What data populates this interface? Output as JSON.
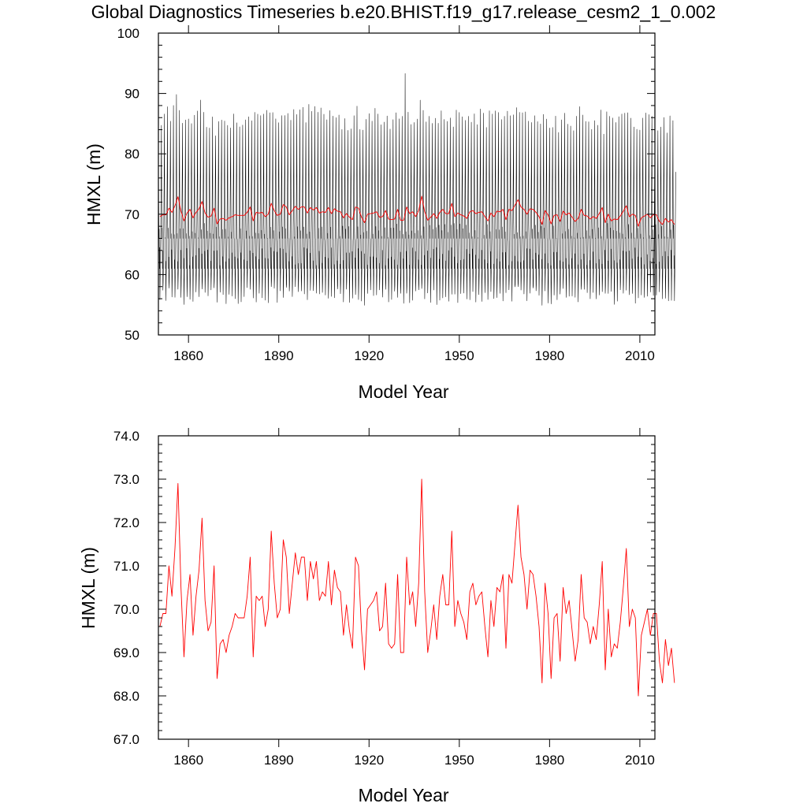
{
  "title": "Global Diagnostics Timeseries b.e20.BHIST.f19_g17.release_cesm2_1_0.002",
  "colors": {
    "monthly": "#000000",
    "annual": "#ff0000",
    "frame": "#000000"
  },
  "chart_data": [
    {
      "type": "line",
      "title": "",
      "xlabel": "Model Year",
      "ylabel": "HMXL (m)",
      "xlim": [
        1850,
        2015
      ],
      "ylim": [
        50,
        100
      ],
      "xticks": [
        "1860",
        "1890",
        "1920",
        "1950",
        "1980",
        "2010"
      ],
      "yticks": [
        "50",
        "60",
        "70",
        "80",
        "90",
        "100"
      ],
      "series": [
        {
          "name": "monthly",
          "color": "#000000",
          "pattern": "seasonal cycle, winter peak ~84-93 m, summer minimum ~54-58 m",
          "peak_range": [
            84,
            93.3
          ],
          "trough_range": [
            53.5,
            58
          ]
        },
        {
          "name": "annual mean",
          "color": "#ff0000",
          "values_ref": "annual_mean"
        }
      ]
    },
    {
      "type": "line",
      "title": "",
      "xlabel": "Model Year",
      "ylabel": "HMXL (m)",
      "xlim": [
        1850,
        2015
      ],
      "ylim": [
        67.0,
        74.0
      ],
      "xticks": [
        "1860",
        "1890",
        "1920",
        "1950",
        "1980",
        "2010"
      ],
      "yticks": [
        "67.0",
        "68.0",
        "69.0",
        "70.0",
        "71.0",
        "72.0",
        "73.0",
        "74.0"
      ],
      "series": [
        {
          "name": "annual mean",
          "color": "#ff0000",
          "values_ref": "annual_mean"
        }
      ]
    }
  ],
  "annual_mean": {
    "start_year": 1850,
    "values": [
      69.6,
      69.9,
      69.9,
      71.0,
      70.3,
      71.4,
      72.9,
      70.5,
      68.9,
      70.2,
      70.8,
      69.4,
      70.3,
      70.9,
      72.1,
      70.2,
      69.5,
      69.7,
      71.0,
      68.4,
      69.2,
      69.3,
      69.0,
      69.4,
      69.6,
      69.9,
      69.8,
      69.8,
      69.8,
      70.3,
      71.2,
      68.9,
      70.3,
      70.2,
      70.3,
      69.6,
      70.0,
      71.8,
      70.6,
      69.8,
      70.0,
      71.6,
      71.2,
      69.9,
      70.6,
      71.3,
      70.8,
      71.2,
      71.2,
      70.2,
      71.1,
      70.7,
      71.1,
      70.2,
      70.4,
      70.3,
      71.1,
      70.1,
      70.9,
      70.5,
      70.4,
      69.4,
      70.1,
      69.5,
      69.1,
      71.2,
      71.0,
      69.5,
      68.6,
      70.0,
      70.1,
      70.2,
      70.4,
      69.5,
      69.6,
      70.6,
      69.2,
      69.1,
      69.2,
      70.8,
      69.0,
      69.0,
      71.2,
      70.1,
      70.4,
      69.6,
      70.6,
      73.0,
      70.4,
      69.0,
      69.5,
      70.1,
      69.3,
      70.3,
      70.8,
      70.1,
      70.1,
      71.8,
      69.6,
      70.2,
      69.9,
      69.7,
      69.3,
      70.4,
      70.6,
      70.1,
      70.3,
      70.4,
      69.6,
      68.9,
      70.2,
      69.6,
      70.5,
      70.4,
      70.8,
      69.1,
      70.8,
      70.6,
      71.5,
      72.4,
      71.2,
      70.8,
      70.0,
      70.9,
      70.8,
      70.3,
      69.6,
      68.3,
      70.6,
      69.9,
      68.4,
      69.8,
      69.9,
      68.8,
      70.5,
      69.9,
      70.2,
      69.5,
      68.8,
      69.3,
      70.8,
      69.8,
      69.7,
      69.2,
      69.6,
      69.3,
      70.1,
      71.1,
      68.6,
      70.0,
      68.9,
      69.2,
      69.1,
      69.7,
      70.5,
      71.4,
      69.6,
      70.0,
      69.8,
      68.0,
      69.4,
      69.7,
      70.0,
      69.4,
      69.9,
      69.9,
      68.8,
      68.3,
      69.3,
      68.7,
      69.1,
      68.3
    ]
  }
}
